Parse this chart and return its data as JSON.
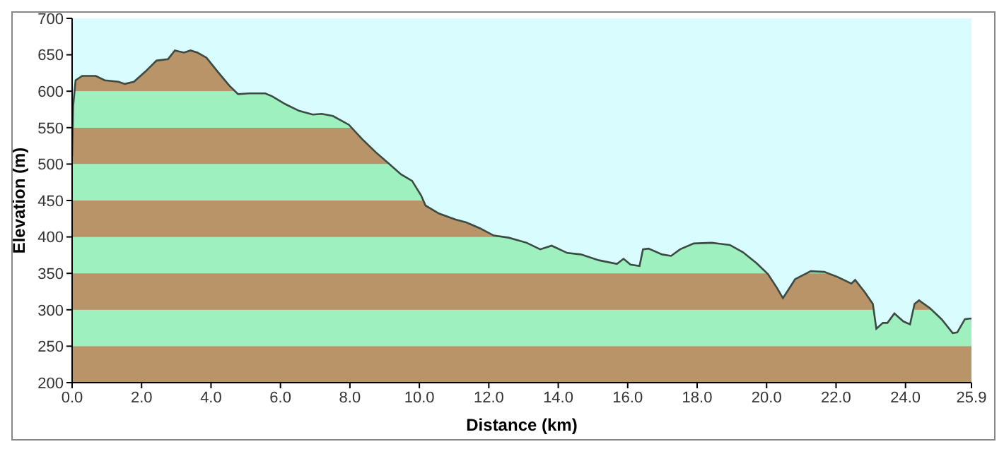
{
  "chart_data": {
    "type": "area",
    "xlabel": "Distance  (km)",
    "ylabel": "Elevation (m)",
    "x": [
      0,
      0.03,
      0.1,
      0.29,
      0.68,
      0.94,
      1.33,
      1.52,
      1.78,
      2.11,
      2.43,
      2.76,
      2.96,
      3.22,
      3.41,
      3.61,
      3.87,
      4.19,
      4.52,
      4.78,
      5.1,
      5.56,
      5.76,
      6.15,
      6.54,
      6.93,
      7.19,
      7.51,
      7.97,
      8.36,
      8.75,
      9.14,
      9.47,
      9.79,
      10.05,
      10.18,
      10.57,
      11.03,
      11.35,
      11.74,
      12.14,
      12.57,
      13.09,
      13.48,
      13.81,
      14.26,
      14.65,
      15.17,
      15.69,
      15.88,
      16.08,
      16.34,
      16.44,
      16.6,
      16.99,
      17.25,
      17.51,
      17.9,
      18.42,
      18.94,
      19.32,
      19.71,
      20.04,
      20.3,
      20.47,
      20.62,
      20.82,
      21.27,
      21.66,
      22.05,
      22.44,
      22.55,
      22.83,
      23.06,
      23.16,
      23.35,
      23.48,
      23.68,
      23.94,
      24.13,
      24.26,
      24.39,
      24.71,
      25.04,
      25.36,
      25.49,
      25.71,
      25.84,
      25.9
    ],
    "series": [
      {
        "color": "#3c4a44",
        "values": [
          510,
          580,
          615,
          621,
          621,
          615,
          613,
          610,
          613,
          627,
          642,
          644,
          656,
          653,
          656,
          653,
          646,
          627,
          608,
          596,
          597,
          597,
          593,
          582,
          573,
          568,
          569,
          566,
          554,
          534,
          516,
          500,
          486,
          477,
          457,
          443,
          432,
          424,
          420,
          412,
          402,
          399,
          392,
          383,
          388,
          378,
          376,
          368,
          363,
          370,
          362,
          360,
          383,
          384,
          376,
          374,
          383,
          391,
          392,
          389,
          379,
          364,
          349,
          330,
          316,
          327,
          342,
          353,
          352,
          345,
          336,
          341,
          324,
          308,
          274,
          282,
          282,
          295,
          284,
          280,
          308,
          313,
          302,
          287,
          268,
          269,
          287,
          288,
          288
        ]
      }
    ],
    "xlim": [
      0,
      25.9
    ],
    "xticks": [
      {
        "value": 0,
        "label": "0.0"
      },
      {
        "value": 2,
        "label": "2.0"
      },
      {
        "value": 4,
        "label": "4.0"
      },
      {
        "value": 6,
        "label": "6.0"
      },
      {
        "value": 8,
        "label": "8.0"
      },
      {
        "value": 10,
        "label": "10.0"
      },
      {
        "value": 12,
        "label": "12.0"
      },
      {
        "value": 14,
        "label": "14.0"
      },
      {
        "value": 16,
        "label": "16.0"
      },
      {
        "value": 18,
        "label": "18.0"
      },
      {
        "value": 20,
        "label": "20.0"
      },
      {
        "value": 22,
        "label": "22.0"
      },
      {
        "value": 24,
        "label": "24.0"
      },
      25.9
    ],
    "ylim": [
      200,
      700
    ],
    "yticks": [
      200,
      250,
      300,
      350,
      400,
      450,
      500,
      550,
      600,
      650,
      700
    ],
    "bands": [
      {
        "axis": "y",
        "from": 200,
        "to": 250,
        "color": "#b89468"
      },
      {
        "axis": "y",
        "from": 250,
        "to": 300,
        "color": "#9ef0be"
      },
      {
        "axis": "y",
        "from": 300,
        "to": 350,
        "color": "#b89468"
      },
      {
        "axis": "y",
        "from": 350,
        "to": 400,
        "color": "#9ef0be"
      },
      {
        "axis": "y",
        "from": 400,
        "to": 450,
        "color": "#b89468"
      },
      {
        "axis": "y",
        "from": 450,
        "to": 500,
        "color": "#9ef0be"
      },
      {
        "axis": "y",
        "from": 500,
        "to": 550,
        "color": "#b89468"
      },
      {
        "axis": "y",
        "from": 550,
        "to": 600,
        "color": "#9ef0be"
      },
      {
        "axis": "y",
        "from": 600,
        "to": 700,
        "color": "#b89468"
      }
    ],
    "grid": false,
    "legend": false
  }
}
